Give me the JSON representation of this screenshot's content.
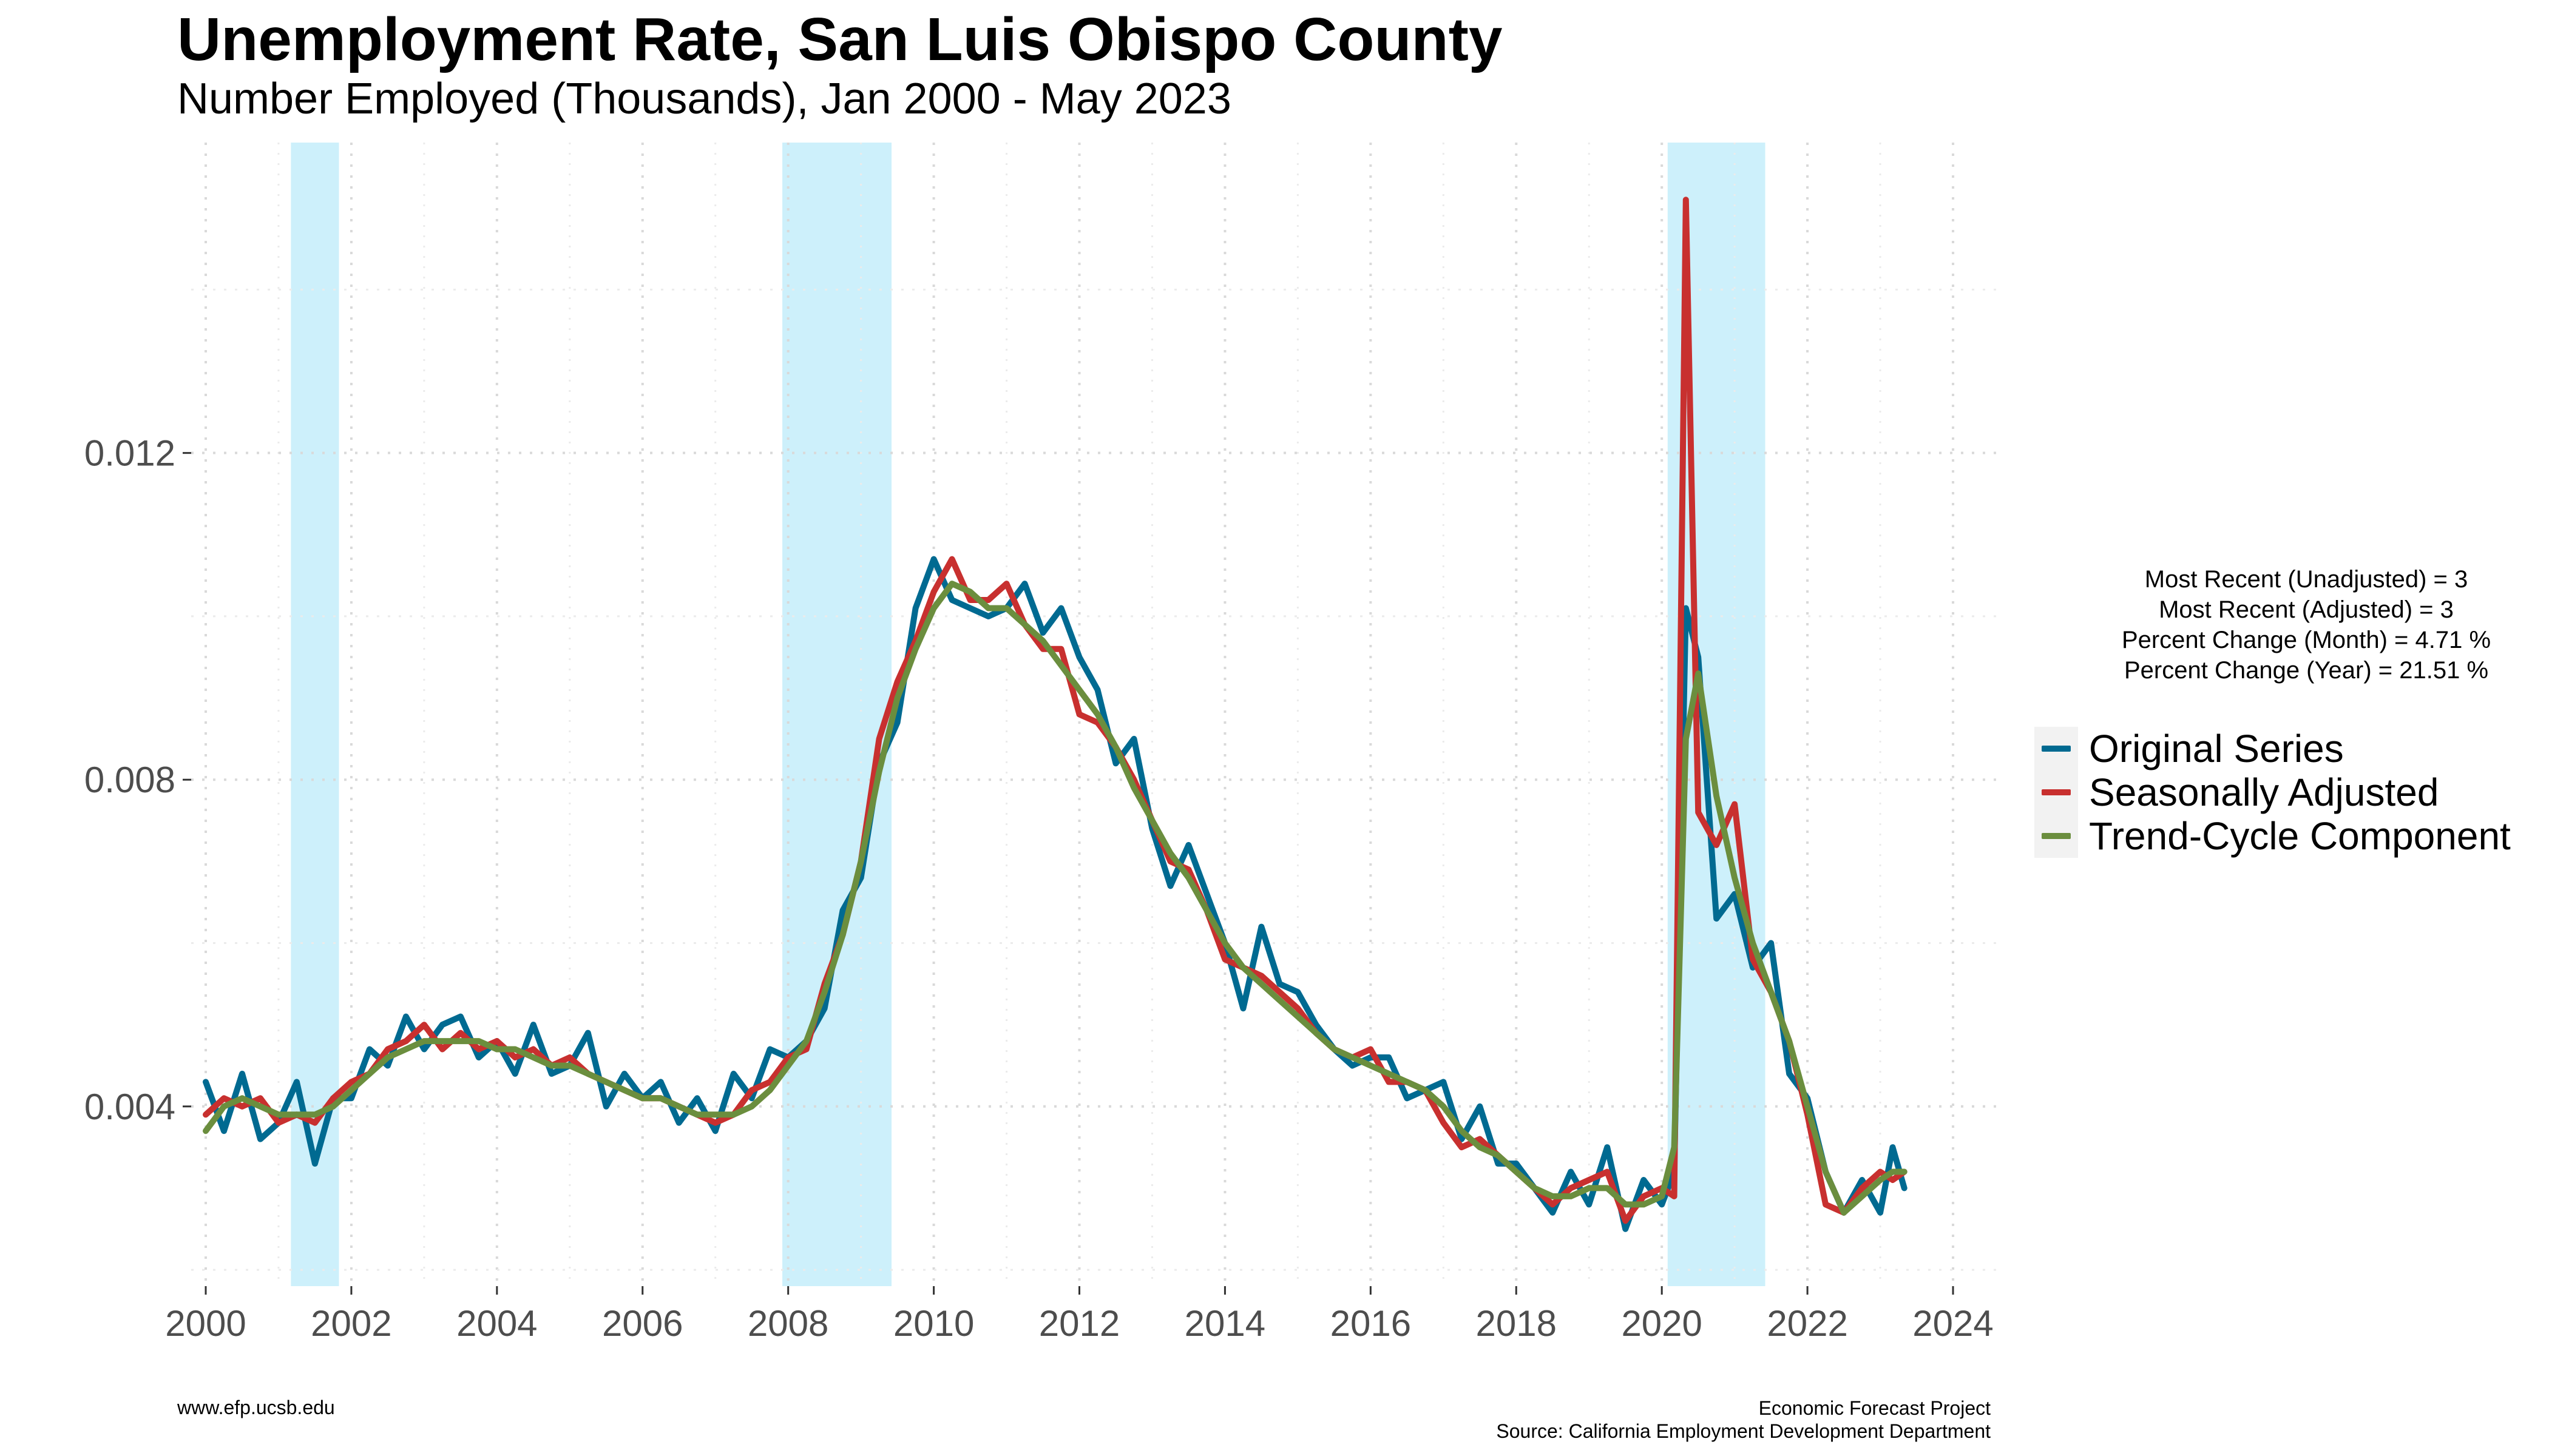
{
  "chart_data": {
    "type": "line",
    "title": "Unemployment Rate, San Luis Obispo County",
    "subtitle": "Number Employed (Thousands), Jan 2000 - May 2023",
    "xlabel": "",
    "ylabel": "",
    "xlim": [
      2000,
      2024
    ],
    "ylim": [
      0.0018,
      0.0158
    ],
    "x_ticks": [
      2000,
      2002,
      2004,
      2006,
      2008,
      2010,
      2012,
      2014,
      2016,
      2018,
      2020,
      2022,
      2024
    ],
    "y_ticks": [
      0.004,
      0.008,
      0.012
    ],
    "y_tick_labels": [
      "0.004",
      "0.008",
      "0.012"
    ],
    "grid": "dotted",
    "legend_position": "right",
    "recessions": [
      [
        2001.17,
        2001.83
      ],
      [
        2007.92,
        2009.42
      ],
      [
        2020.08,
        2021.42
      ]
    ],
    "series": [
      {
        "name": "Original Series",
        "color": "#006a91",
        "x": [
          2000.0,
          2000.25,
          2000.5,
          2000.75,
          2001.0,
          2001.25,
          2001.5,
          2001.75,
          2002.0,
          2002.25,
          2002.5,
          2002.75,
          2003.0,
          2003.25,
          2003.5,
          2003.75,
          2004.0,
          2004.25,
          2004.5,
          2004.75,
          2005.0,
          2005.25,
          2005.5,
          2005.75,
          2006.0,
          2006.25,
          2006.5,
          2006.75,
          2007.0,
          2007.25,
          2007.5,
          2007.75,
          2008.0,
          2008.25,
          2008.5,
          2008.75,
          2009.0,
          2009.25,
          2009.5,
          2009.75,
          2010.0,
          2010.25,
          2010.5,
          2010.75,
          2011.0,
          2011.25,
          2011.5,
          2011.75,
          2012.0,
          2012.25,
          2012.5,
          2012.75,
          2013.0,
          2013.25,
          2013.5,
          2013.75,
          2014.0,
          2014.25,
          2014.5,
          2014.75,
          2015.0,
          2015.25,
          2015.5,
          2015.75,
          2016.0,
          2016.25,
          2016.5,
          2016.75,
          2017.0,
          2017.25,
          2017.5,
          2017.75,
          2018.0,
          2018.25,
          2018.5,
          2018.75,
          2019.0,
          2019.25,
          2019.5,
          2019.75,
          2020.0,
          2020.17,
          2020.33,
          2020.5,
          2020.75,
          2021.0,
          2021.25,
          2021.5,
          2021.75,
          2022.0,
          2022.25,
          2022.5,
          2022.75,
          2023.0,
          2023.17,
          2023.33
        ],
        "y": [
          0.0043,
          0.0037,
          0.0044,
          0.0036,
          0.0038,
          0.0043,
          0.0033,
          0.0041,
          0.0041,
          0.0047,
          0.0045,
          0.0051,
          0.0047,
          0.005,
          0.0051,
          0.0046,
          0.0048,
          0.0044,
          0.005,
          0.0044,
          0.0045,
          0.0049,
          0.004,
          0.0044,
          0.0041,
          0.0043,
          0.0038,
          0.0041,
          0.0037,
          0.0044,
          0.0041,
          0.0047,
          0.0046,
          0.0048,
          0.0052,
          0.0064,
          0.0068,
          0.0082,
          0.0087,
          0.0101,
          0.0107,
          0.0102,
          0.0101,
          0.01,
          0.0101,
          0.0104,
          0.0098,
          0.0101,
          0.0095,
          0.0091,
          0.0082,
          0.0085,
          0.0074,
          0.0067,
          0.0072,
          0.0066,
          0.006,
          0.0052,
          0.0062,
          0.0055,
          0.0054,
          0.005,
          0.0047,
          0.0045,
          0.0046,
          0.0046,
          0.0041,
          0.0042,
          0.0043,
          0.0036,
          0.004,
          0.0033,
          0.0033,
          0.003,
          0.0027,
          0.0032,
          0.0028,
          0.0035,
          0.0025,
          0.0031,
          0.0028,
          0.0032,
          0.0101,
          0.0095,
          0.0063,
          0.0066,
          0.0057,
          0.006,
          0.0044,
          0.0041,
          0.0032,
          0.0027,
          0.0031,
          0.0027,
          0.0035,
          0.003
        ]
      },
      {
        "name": "Seasonally Adjusted",
        "color": "#c8302f",
        "x": [
          2000.0,
          2000.25,
          2000.5,
          2000.75,
          2001.0,
          2001.25,
          2001.5,
          2001.75,
          2002.0,
          2002.25,
          2002.5,
          2002.75,
          2003.0,
          2003.25,
          2003.5,
          2003.75,
          2004.0,
          2004.25,
          2004.5,
          2004.75,
          2005.0,
          2005.25,
          2005.5,
          2005.75,
          2006.0,
          2006.25,
          2006.5,
          2006.75,
          2007.0,
          2007.25,
          2007.5,
          2007.75,
          2008.0,
          2008.25,
          2008.5,
          2008.75,
          2009.0,
          2009.25,
          2009.5,
          2009.75,
          2010.0,
          2010.25,
          2010.5,
          2010.75,
          2011.0,
          2011.25,
          2011.5,
          2011.75,
          2012.0,
          2012.25,
          2012.5,
          2012.75,
          2013.0,
          2013.25,
          2013.5,
          2013.75,
          2014.0,
          2014.25,
          2014.5,
          2014.75,
          2015.0,
          2015.25,
          2015.5,
          2015.75,
          2016.0,
          2016.25,
          2016.5,
          2016.75,
          2017.0,
          2017.25,
          2017.5,
          2017.75,
          2018.0,
          2018.25,
          2018.5,
          2018.75,
          2019.0,
          2019.25,
          2019.5,
          2019.75,
          2020.0,
          2020.17,
          2020.33,
          2020.5,
          2020.75,
          2021.0,
          2021.25,
          2021.5,
          2021.75,
          2022.0,
          2022.25,
          2022.5,
          2022.75,
          2023.0,
          2023.17,
          2023.33
        ],
        "y": [
          0.0039,
          0.0041,
          0.004,
          0.0041,
          0.0038,
          0.0039,
          0.0038,
          0.0041,
          0.0043,
          0.0044,
          0.0047,
          0.0048,
          0.005,
          0.0047,
          0.0049,
          0.0047,
          0.0048,
          0.0046,
          0.0047,
          0.0045,
          0.0046,
          0.0044,
          0.0043,
          0.0042,
          0.0041,
          0.0041,
          0.004,
          0.0039,
          0.0038,
          0.0039,
          0.0042,
          0.0043,
          0.0046,
          0.0047,
          0.0055,
          0.0061,
          0.007,
          0.0085,
          0.0092,
          0.0097,
          0.0103,
          0.0107,
          0.0102,
          0.0102,
          0.0104,
          0.0099,
          0.0096,
          0.0096,
          0.0088,
          0.0087,
          0.0084,
          0.008,
          0.0075,
          0.007,
          0.0069,
          0.0064,
          0.0058,
          0.0057,
          0.0056,
          0.0054,
          0.0052,
          0.0049,
          0.0047,
          0.0046,
          0.0047,
          0.0043,
          0.0043,
          0.0042,
          0.0038,
          0.0035,
          0.0036,
          0.0034,
          0.0032,
          0.003,
          0.0028,
          0.003,
          0.0031,
          0.0032,
          0.0026,
          0.0029,
          0.003,
          0.0029,
          0.0151,
          0.0076,
          0.0072,
          0.0077,
          0.0058,
          0.0054,
          0.0048,
          0.0039,
          0.0028,
          0.0027,
          0.003,
          0.0032,
          0.0031,
          0.0032
        ]
      },
      {
        "name": "Trend-Cycle Component",
        "color": "#6b8e3e",
        "x": [
          2000.0,
          2000.25,
          2000.5,
          2000.75,
          2001.0,
          2001.25,
          2001.5,
          2001.75,
          2002.0,
          2002.25,
          2002.5,
          2002.75,
          2003.0,
          2003.25,
          2003.5,
          2003.75,
          2004.0,
          2004.25,
          2004.5,
          2004.75,
          2005.0,
          2005.25,
          2005.5,
          2005.75,
          2006.0,
          2006.25,
          2006.5,
          2006.75,
          2007.0,
          2007.25,
          2007.5,
          2007.75,
          2008.0,
          2008.25,
          2008.5,
          2008.75,
          2009.0,
          2009.25,
          2009.5,
          2009.75,
          2010.0,
          2010.25,
          2010.5,
          2010.75,
          2011.0,
          2011.25,
          2011.5,
          2011.75,
          2012.0,
          2012.25,
          2012.5,
          2012.75,
          2013.0,
          2013.25,
          2013.5,
          2013.75,
          2014.0,
          2014.25,
          2014.5,
          2014.75,
          2015.0,
          2015.25,
          2015.5,
          2015.75,
          2016.0,
          2016.25,
          2016.5,
          2016.75,
          2017.0,
          2017.25,
          2017.5,
          2017.75,
          2018.0,
          2018.25,
          2018.5,
          2018.75,
          2019.0,
          2019.25,
          2019.5,
          2019.75,
          2020.0,
          2020.17,
          2020.33,
          2020.5,
          2020.75,
          2021.0,
          2021.25,
          2021.5,
          2021.75,
          2022.0,
          2022.25,
          2022.5,
          2022.75,
          2023.0,
          2023.17,
          2023.33
        ],
        "y": [
          0.0037,
          0.004,
          0.0041,
          0.004,
          0.0039,
          0.0039,
          0.0039,
          0.004,
          0.0042,
          0.0044,
          0.0046,
          0.0047,
          0.0048,
          0.0048,
          0.0048,
          0.0048,
          0.0047,
          0.0047,
          0.0046,
          0.0045,
          0.0045,
          0.0044,
          0.0043,
          0.0042,
          0.0041,
          0.0041,
          0.004,
          0.0039,
          0.0039,
          0.0039,
          0.004,
          0.0042,
          0.0045,
          0.0048,
          0.0054,
          0.0061,
          0.007,
          0.0081,
          0.009,
          0.0096,
          0.0101,
          0.0104,
          0.0103,
          0.0101,
          0.0101,
          0.0099,
          0.0097,
          0.0094,
          0.0091,
          0.0088,
          0.0084,
          0.0079,
          0.0075,
          0.0071,
          0.0068,
          0.0064,
          0.006,
          0.0057,
          0.0055,
          0.0053,
          0.0051,
          0.0049,
          0.0047,
          0.0046,
          0.0045,
          0.0044,
          0.0043,
          0.0042,
          0.004,
          0.0037,
          0.0035,
          0.0034,
          0.0032,
          0.003,
          0.0029,
          0.0029,
          0.003,
          0.003,
          0.0028,
          0.0028,
          0.0029,
          0.0035,
          0.0085,
          0.0093,
          0.0078,
          0.0068,
          0.006,
          0.0054,
          0.0048,
          0.004,
          0.0032,
          0.0027,
          0.0029,
          0.0031,
          0.0032,
          0.0032
        ]
      }
    ]
  },
  "stats": {
    "lines": [
      "Most Recent (Unadjusted) = 3",
      "Most Recent (Adjusted) = 3",
      "Percent Change (Month) = 4.71 %",
      "Percent Change (Year) = 21.51 %"
    ]
  },
  "footer": {
    "left": "www.efp.ucsb.edu",
    "right_line1": "Economic Forecast Project",
    "right_line2": "Source: California Employment Development Department"
  }
}
